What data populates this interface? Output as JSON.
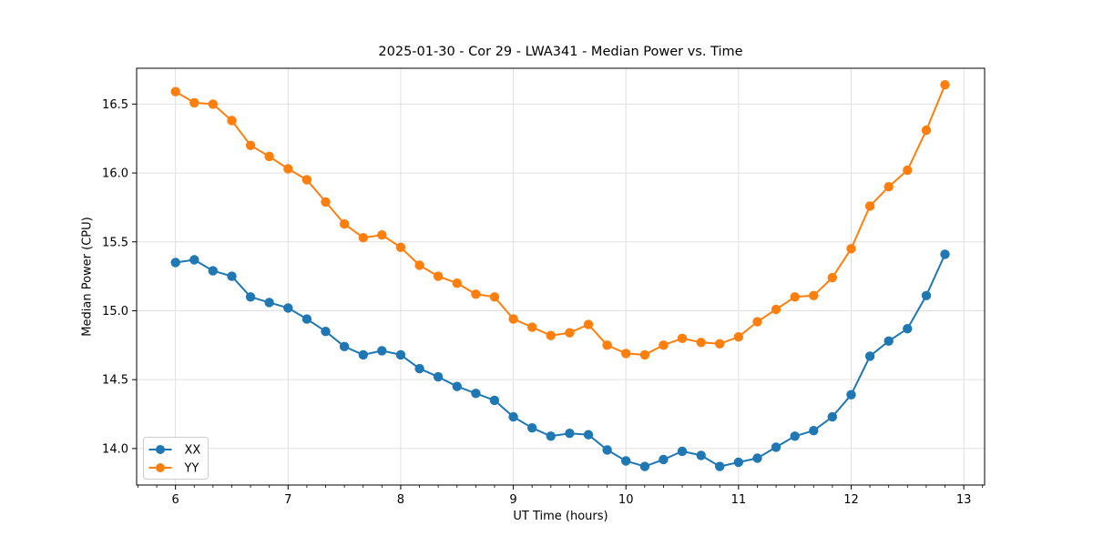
{
  "chart_data": {
    "type": "line",
    "title": "2025-01-30 - Cor 29 - LWA341 - Median Power vs. Time",
    "xlabel": "UT Time (hours)",
    "ylabel": "Median Power (CPU)",
    "xlim": [
      5.655,
      13.185
    ],
    "ylim": [
      13.735,
      16.76
    ],
    "xticks": [
      6,
      7,
      8,
      9,
      10,
      11,
      12,
      13
    ],
    "yticks": [
      14.0,
      14.5,
      15.0,
      15.5,
      16.0,
      16.5
    ],
    "x_minor_per_hour": 6,
    "grid": true,
    "legend_position": "lower-left",
    "x": [
      6.0,
      6.167,
      6.333,
      6.5,
      6.667,
      6.833,
      7.0,
      7.167,
      7.333,
      7.5,
      7.667,
      7.833,
      8.0,
      8.167,
      8.333,
      8.5,
      8.667,
      8.833,
      9.0,
      9.167,
      9.333,
      9.5,
      9.667,
      9.833,
      10.0,
      10.167,
      10.333,
      10.5,
      10.667,
      10.833,
      11.0,
      11.167,
      11.333,
      11.5,
      11.667,
      11.833,
      12.0,
      12.167,
      12.333,
      12.5,
      12.667,
      12.833
    ],
    "series": [
      {
        "name": "XX",
        "color": "#1f77b4",
        "values": [
          15.35,
          15.37,
          15.29,
          15.25,
          15.1,
          15.06,
          15.02,
          14.94,
          14.85,
          14.74,
          14.68,
          14.71,
          14.68,
          14.58,
          14.52,
          14.45,
          14.4,
          14.35,
          14.23,
          14.15,
          14.09,
          14.11,
          14.1,
          13.99,
          13.91,
          13.87,
          13.92,
          13.98,
          13.95,
          13.87,
          13.9,
          13.93,
          14.01,
          14.09,
          14.13,
          14.23,
          14.39,
          14.67,
          14.78,
          14.87,
          15.11,
          15.41
        ]
      },
      {
        "name": "YY",
        "color": "#ff7f0e",
        "values": [
          16.59,
          16.51,
          16.5,
          16.38,
          16.2,
          16.12,
          16.03,
          15.95,
          15.79,
          15.63,
          15.53,
          15.55,
          15.46,
          15.33,
          15.25,
          15.2,
          15.12,
          15.1,
          14.94,
          14.88,
          14.82,
          14.84,
          14.9,
          14.75,
          14.69,
          14.68,
          14.75,
          14.8,
          14.77,
          14.76,
          14.81,
          14.92,
          15.01,
          15.1,
          15.11,
          15.24,
          15.45,
          15.76,
          15.9,
          16.02,
          16.31,
          16.64
        ]
      }
    ],
    "colors": {
      "grid": "#e0e0e0",
      "spine": "#000000",
      "tick_text": "#000000",
      "legend_border": "#cccccc",
      "legend_bg": "#ffffff"
    }
  }
}
